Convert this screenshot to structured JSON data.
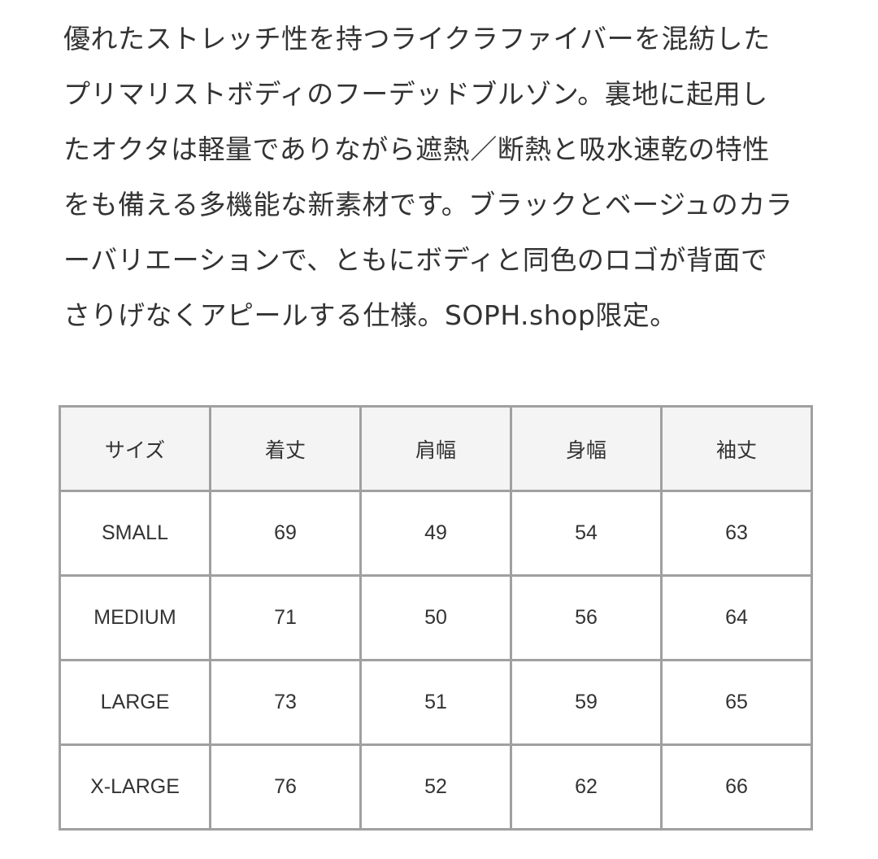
{
  "description": [
    "優れたストレッチ性を持つライクラファイバーを混紡した",
    "プリマリストボディのフーデッドブルゾン。裏地に起用し",
    "たオクタは軽量でありながら遮熱／断熱と吸水速乾の特性",
    "をも備える多機能な新素材です。ブラックとベージュのカラ",
    "ーバリエーションで、ともにボディと同色のロゴが背面で",
    "さりげなくアピールする仕様。SOPH.shop限定。"
  ],
  "size_table": {
    "headers": [
      "サイズ",
      "着丈",
      "肩幅",
      "身幅",
      "袖丈"
    ],
    "rows": [
      [
        "SMALL",
        "69",
        "49",
        "54",
        "63"
      ],
      [
        "MEDIUM",
        "71",
        "50",
        "56",
        "64"
      ],
      [
        "LARGE",
        "73",
        "51",
        "59",
        "65"
      ],
      [
        "X-LARGE",
        "76",
        "52",
        "62",
        "66"
      ]
    ]
  }
}
